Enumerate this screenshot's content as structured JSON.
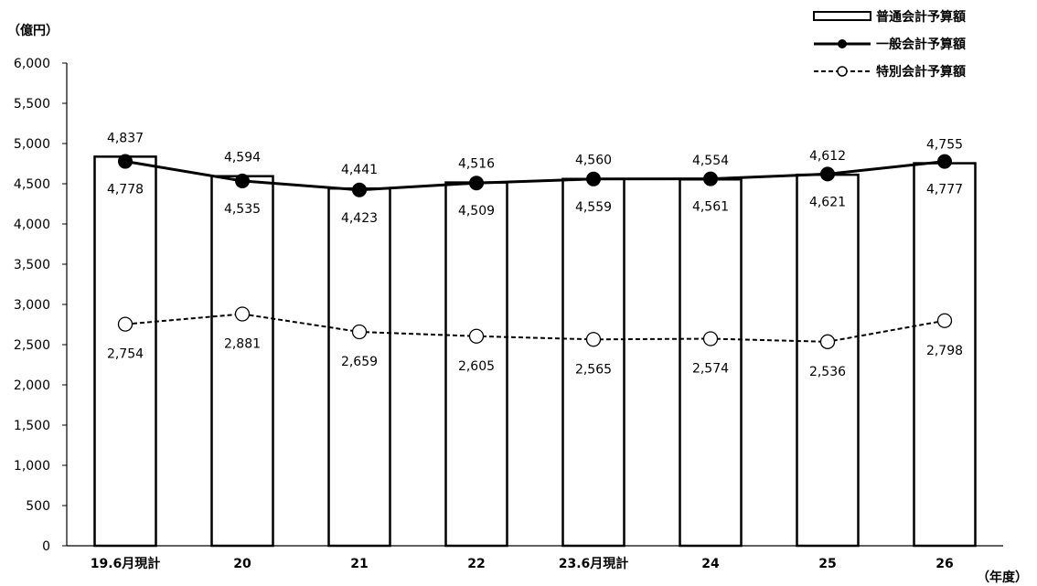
{
  "chart_data": {
    "type": "bar",
    "y_unit": "（億円）",
    "x_unit": "（年度）",
    "categories": [
      "19.6月現計",
      "20",
      "21",
      "22",
      "23.6月現計",
      "24",
      "25",
      "26"
    ],
    "ylim": [
      0,
      6000
    ],
    "yticks": [
      "0",
      "500",
      "1,000",
      "1,500",
      "2,000",
      "2,500",
      "3,000",
      "3,500",
      "4,000",
      "4,500",
      "5,000",
      "5,500",
      "6,000"
    ],
    "grid": false,
    "legend_position": "top-right",
    "series": [
      {
        "name": "普通会計予算額",
        "kind": "bar",
        "values": [
          4837,
          4594,
          4441,
          4516,
          4560,
          4554,
          4612,
          4755
        ],
        "labels": [
          "4,837",
          "4,594",
          "4,441",
          "4,516",
          "4,560",
          "4,554",
          "4,612",
          "4,755"
        ]
      },
      {
        "name": "一般会計予算額",
        "kind": "line-solid",
        "values": [
          4778,
          4535,
          4423,
          4509,
          4559,
          4561,
          4621,
          4777
        ],
        "labels": [
          "4,778",
          "4,535",
          "4,423",
          "4,509",
          "4,559",
          "4,561",
          "4,621",
          "4,777"
        ]
      },
      {
        "name": "特別会計予算額",
        "kind": "line-dashed",
        "values": [
          2754,
          2881,
          2659,
          2605,
          2565,
          2574,
          2536,
          2798
        ],
        "labels": [
          "2,754",
          "2,881",
          "2,659",
          "2,605",
          "2,565",
          "2,574",
          "2,536",
          "2,798"
        ]
      }
    ]
  }
}
